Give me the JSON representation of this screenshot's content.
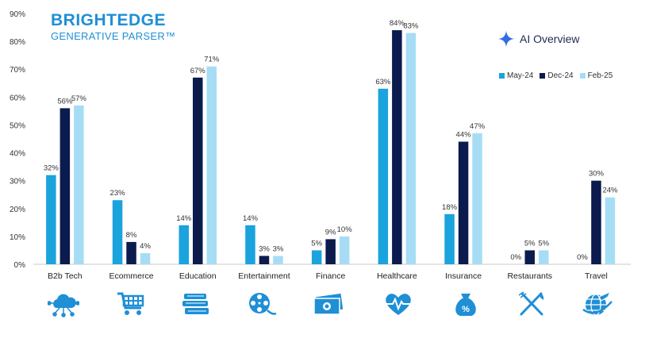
{
  "header": {
    "brand": "BRIGHTEDGE",
    "subtitle": "GENERATIVE PARSER™",
    "badge_label": "AI Overview",
    "badge_icon": "sparkle-icon"
  },
  "colors": {
    "May-24": "#1aa3dd",
    "Dec-24": "#0c1b4d",
    "Feb-25": "#a6ddf5",
    "icon": "#1f8fd6"
  },
  "category_icons": [
    "cloud-network-icon",
    "shopping-cart-icon",
    "books-icon",
    "film-reel-icon",
    "money-icon",
    "heart-pulse-icon",
    "money-bag-percent-icon",
    "fork-knife-icon",
    "globe-plane-icon"
  ],
  "chart_data": {
    "type": "bar",
    "categories": [
      "B2b Tech",
      "Ecommerce",
      "Education",
      "Entertainment",
      "Finance",
      "Healthcare",
      "Insurance",
      "Restaurants",
      "Travel"
    ],
    "series": [
      {
        "name": "May-24",
        "values": [
          32,
          23,
          14,
          14,
          5,
          63,
          18,
          0,
          0
        ]
      },
      {
        "name": "Dec-24",
        "values": [
          56,
          8,
          67,
          3,
          9,
          84,
          44,
          5,
          30
        ]
      },
      {
        "name": "Feb-25",
        "values": [
          57,
          4,
          71,
          3,
          10,
          83,
          47,
          5,
          24
        ]
      }
    ],
    "ylim": [
      0,
      90
    ],
    "yticks": [
      "0%",
      "10%",
      "20%",
      "30%",
      "40%",
      "50%",
      "60%",
      "70%",
      "80%",
      "90%"
    ],
    "data_labels": [
      [
        "32%",
        "23%",
        "14%",
        "14%",
        "5%",
        "63%",
        "18%",
        "0%",
        "0%"
      ],
      [
        "56%",
        "8%",
        "67%",
        "3%",
        "9%",
        "84%",
        "44%",
        "5%",
        "30%"
      ],
      [
        "57%",
        "4%",
        "71%",
        "3%",
        "10%",
        "83%",
        "47%",
        "5%",
        "24%"
      ]
    ],
    "grid": false,
    "legend": "top-right",
    "xlabel": "",
    "ylabel": ""
  }
}
